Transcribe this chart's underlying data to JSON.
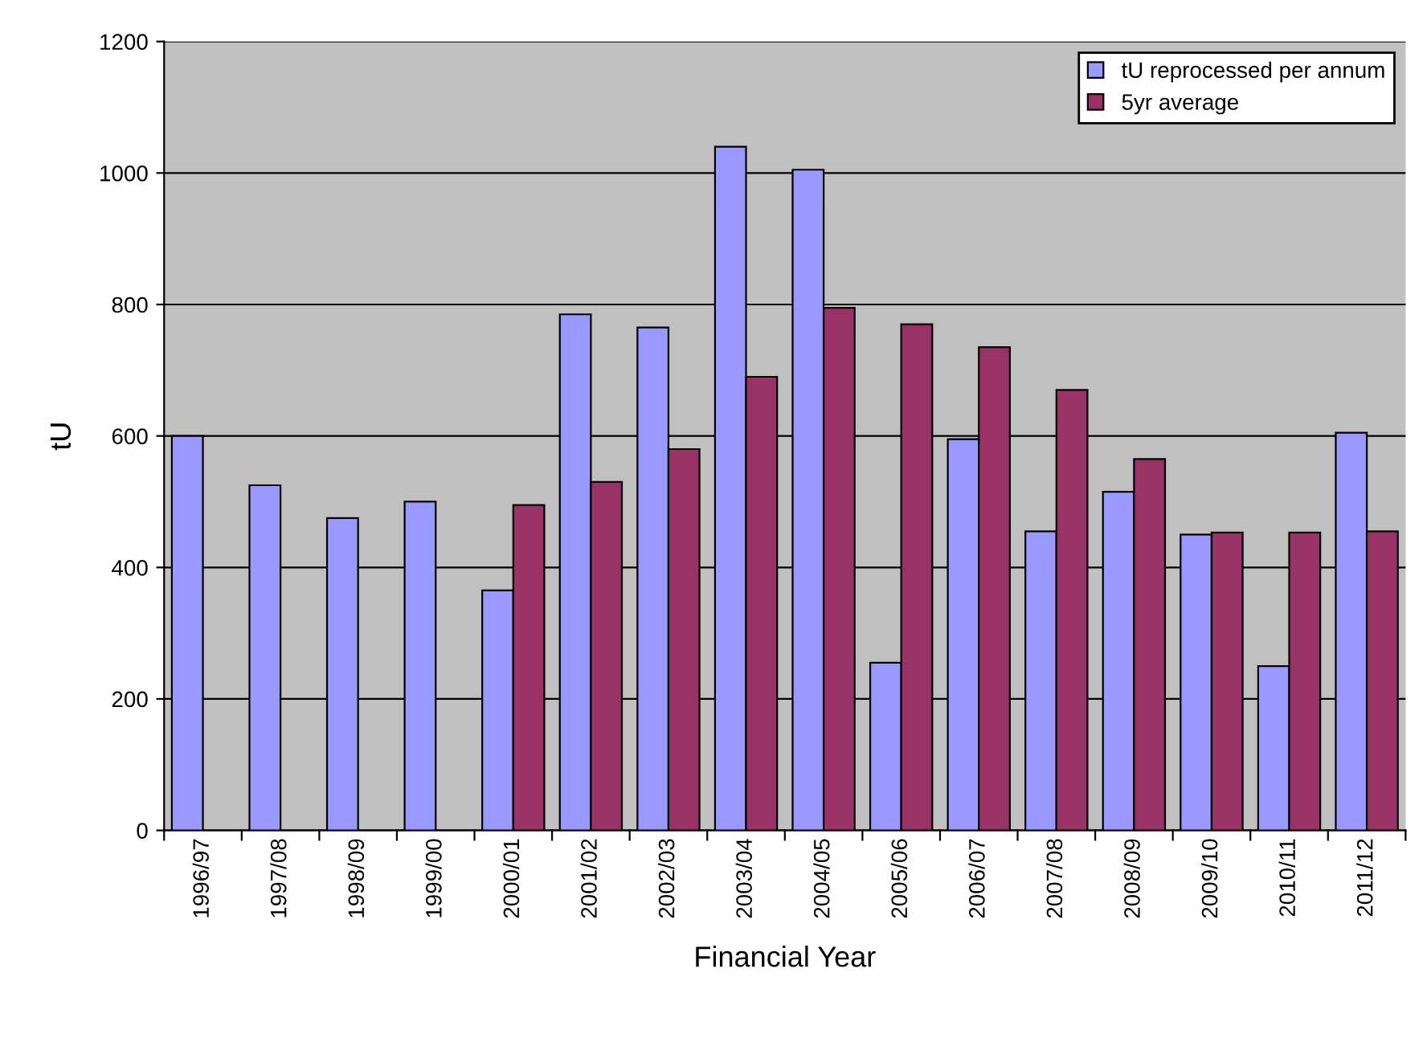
{
  "chart_data": {
    "type": "bar",
    "xlabel": "Financial Year",
    "ylabel": "tU",
    "categories": [
      "1996/97",
      "1997/08",
      "1998/09",
      "1999/00",
      "2000/01",
      "2001/02",
      "2002/03",
      "2003/04",
      "2004/05",
      "2005/06",
      "2006/07",
      "2007/08",
      "2008/09",
      "2009/10",
      "2010/11",
      "2011/12"
    ],
    "series": [
      {
        "name": "tU reprocessed per annum",
        "color": "#9999ff",
        "values": [
          600,
          525,
          475,
          500,
          365,
          785,
          765,
          1040,
          1005,
          255,
          595,
          455,
          515,
          450,
          250,
          605
        ]
      },
      {
        "name": "5yr average",
        "color": "#993366",
        "values": [
          null,
          null,
          null,
          null,
          495,
          530,
          580,
          690,
          795,
          770,
          735,
          670,
          565,
          453,
          453,
          455
        ]
      }
    ],
    "ylim": [
      0,
      1200
    ],
    "yticks": [
      0,
      200,
      400,
      600,
      800,
      1000,
      1200
    ],
    "grid": "y",
    "legend": "top right"
  }
}
